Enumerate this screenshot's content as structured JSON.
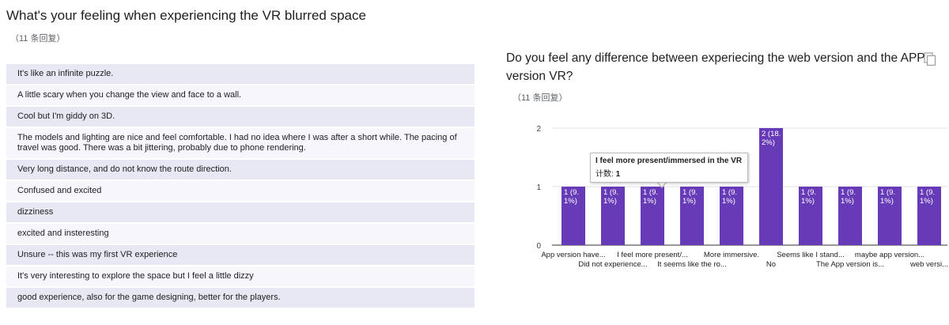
{
  "q1": {
    "title": "What's your feeling when experiencing the VR blurred space",
    "count": "（11 条回复）",
    "responses": [
      "It's like an infinite puzzle.",
      "A little scary when you change the view and face to a wall.",
      "Cool but I'm giddy on 3D.",
      "The models and lighting are nice and feel comfortable. I had no idea where I was after a short while. The pacing of travel was good. There was a bit jittering, probably due to phone rendering.",
      "Very long distance, and do not know the route direction.",
      "Confused and excited",
      "dizziness",
      "excited and insteresting",
      "Unsure -- this was my first VR experience",
      "It's very interesting to explore the space but I feel a little dizzy",
      "good experience, also for the game designing, better for the players."
    ]
  },
  "q2": {
    "title": "Do you feel any difference between experiecing the web version and the APP version VR?",
    "count": "（11 条回复）",
    "copy_icon": "copy-icon",
    "tooltip": {
      "label": "I feel more present/immersed in the VR ...",
      "count_label": "计数:",
      "count_value": "1"
    }
  },
  "chart_data": {
    "type": "bar",
    "categories": [
      "App version have...",
      "Did not experience...",
      "I feel more present/...",
      "It seems like the ro...",
      "More immersive.",
      "No",
      "Seems like I stand...",
      "The App version is...",
      "maybe app version...",
      "web versi..."
    ],
    "values": [
      1,
      1,
      1,
      1,
      1,
      2,
      1,
      1,
      1,
      1
    ],
    "data_labels": [
      "1 (9.1%)",
      "1 (9.1%)",
      "1 (9.1%)",
      "1 (9.1%)",
      "1 (9.1%)",
      "2 (18.2%)",
      "1 (9.1%)",
      "1 (9.1%)",
      "1 (9.1%)",
      "1 (9.1%)"
    ],
    "y_ticks": [
      "0",
      "1",
      "2"
    ],
    "ylim": [
      0,
      2
    ],
    "grid": true,
    "bar_color": "#673ab7",
    "gridline_color": "#e0e0e0"
  }
}
